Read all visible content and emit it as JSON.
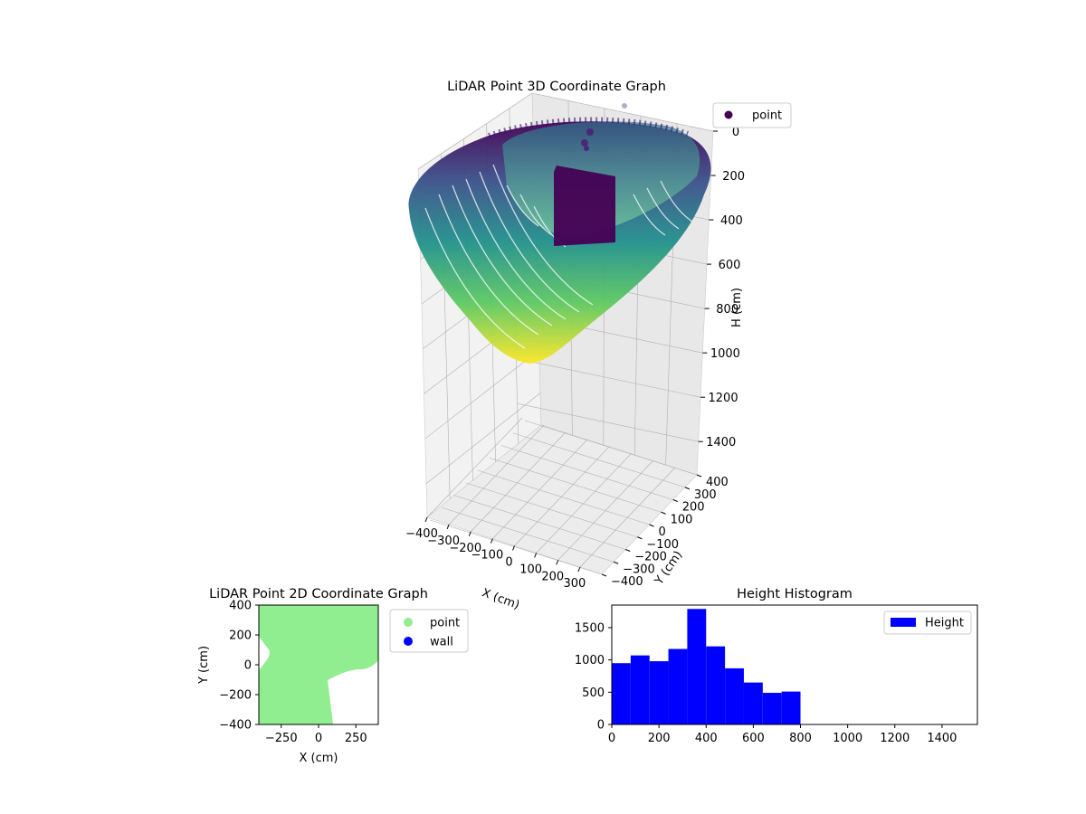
{
  "chart_data": [
    {
      "type": "scatter",
      "title": "LiDAR Point 3D Coordinate Graph",
      "xlabel": "X (cm)",
      "ylabel": "Y (cm)",
      "zlabel": "H (cm)",
      "x_ticks": [
        "−400",
        "−300",
        "−200",
        "−100",
        "0",
        "100",
        "200",
        "300"
      ],
      "y_ticks": [
        "−400",
        "−300",
        "−200",
        "−100",
        "0",
        "100",
        "200",
        "300",
        "400"
      ],
      "z_ticks": [
        "0",
        "200",
        "400",
        "600",
        "800",
        "1000",
        "1200",
        "1400"
      ],
      "xlim": [
        -400,
        400
      ],
      "ylim": [
        -400,
        400
      ],
      "zlim": [
        0,
        1550
      ],
      "z_inverted": true,
      "grid": true,
      "colormap": "viridis",
      "legend": {
        "position": "top-right",
        "entries": [
          {
            "label": "point",
            "color": "#440154"
          }
        ]
      }
    },
    {
      "type": "scatter",
      "title": "LiDAR Point 2D Coordinate Graph",
      "xlabel": "X (cm)",
      "ylabel": "Y (cm)",
      "x_ticks": [
        "−250",
        "0",
        "250"
      ],
      "y_ticks": [
        "400",
        "200",
        "0",
        "−200",
        "−400"
      ],
      "xlim": [
        -400,
        400
      ],
      "ylim": [
        -400,
        400
      ],
      "legend": {
        "position": "outside-right",
        "entries": [
          {
            "label": "point",
            "color": "#90ee90"
          },
          {
            "label": "wall",
            "color": "#0000ff"
          }
        ]
      }
    },
    {
      "type": "bar",
      "title": "Height Histogram",
      "xlabel": "",
      "ylabel": "",
      "series": [
        {
          "name": "Height",
          "color": "#0000ff",
          "bin_edges": [
            0,
            80,
            160,
            240,
            320,
            400,
            480,
            560,
            640,
            720,
            800
          ],
          "values": [
            950,
            1070,
            980,
            1170,
            1790,
            1210,
            870,
            650,
            490,
            510
          ]
        }
      ],
      "xlim": [
        0,
        1550
      ],
      "ylim": [
        0,
        1850
      ],
      "x_ticks": [
        "0",
        "200",
        "400",
        "600",
        "800",
        "1000",
        "1200",
        "1400"
      ],
      "y_ticks": [
        "0",
        "500",
        "1000",
        "1500"
      ],
      "legend": {
        "position": "top-right"
      }
    }
  ]
}
